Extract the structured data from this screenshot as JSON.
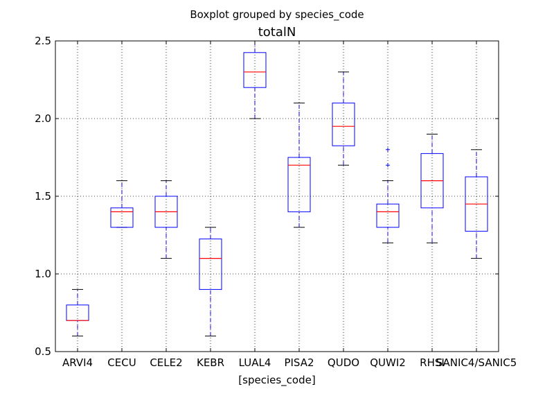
{
  "chart_data": {
    "type": "boxplot",
    "suptitle": "Boxplot grouped by species_code",
    "title": "totalN",
    "xlabel": "[species_code]",
    "ylabel": "",
    "ylim": [
      0.5,
      2.5
    ],
    "yticks": [
      "0.5",
      "1.0",
      "1.5",
      "2.0",
      "2.5"
    ],
    "grid": true,
    "categories": [
      "ARVI4",
      "CECU",
      "CELE2",
      "KEBR",
      "LUAL4",
      "PISA2",
      "QUDO",
      "QUWI2",
      "RHSI",
      "SANIC4/SANIC5"
    ],
    "boxes": [
      {
        "whisker_low": 0.6,
        "q1": 0.7,
        "median": 0.7,
        "q3": 0.8,
        "whisker_high": 0.9,
        "outliers": []
      },
      {
        "whisker_low": 1.3,
        "q1": 1.3,
        "median": 1.4,
        "q3": 1.425,
        "whisker_high": 1.6,
        "outliers": []
      },
      {
        "whisker_low": 1.1,
        "q1": 1.3,
        "median": 1.4,
        "q3": 1.5,
        "whisker_high": 1.6,
        "outliers": []
      },
      {
        "whisker_low": 0.6,
        "q1": 0.9,
        "median": 1.1,
        "q3": 1.225,
        "whisker_high": 1.3,
        "outliers": []
      },
      {
        "whisker_low": 2.0,
        "q1": 2.2,
        "median": 2.3,
        "q3": 2.425,
        "whisker_high": 2.5,
        "outliers": []
      },
      {
        "whisker_low": 1.3,
        "q1": 1.4,
        "median": 1.7,
        "q3": 1.75,
        "whisker_high": 2.1,
        "outliers": []
      },
      {
        "whisker_low": 1.7,
        "q1": 1.825,
        "median": 1.95,
        "q3": 2.1,
        "whisker_high": 2.3,
        "outliers": []
      },
      {
        "whisker_low": 1.2,
        "q1": 1.3,
        "median": 1.4,
        "q3": 1.45,
        "whisker_high": 1.6,
        "outliers": [
          1.7,
          1.8
        ]
      },
      {
        "whisker_low": 1.2,
        "q1": 1.425,
        "median": 1.6,
        "q3": 1.775,
        "whisker_high": 1.9,
        "outliers": []
      },
      {
        "whisker_low": 1.1,
        "q1": 1.275,
        "median": 1.45,
        "q3": 1.625,
        "whisker_high": 1.8,
        "outliers": []
      }
    ],
    "colors": {
      "box": "#0000ff",
      "median": "#ff0000",
      "whisker": "#0000ff",
      "cap": "#000000",
      "outlier": "#0000ff"
    }
  }
}
